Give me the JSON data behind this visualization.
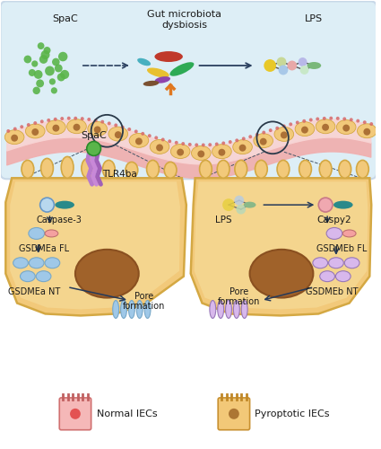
{
  "bg_color": "#ffffff",
  "top_panel_bg": "#ddeef6",
  "top_panel_border": "#c8d8e8",
  "cell_color": "#f2c97a",
  "cell_border": "#d4a843",
  "cell_inner": "#f7df9e",
  "nucleus_color": "#a0622a",
  "nucleus_border": "#8a5020",
  "intestine_pink": "#f2c4c4",
  "intestine_dark": "#e8a8a8",
  "microvillus_color": "#d87070",
  "green_dot": "#5ab54a",
  "dark_navy": "#2a3f5f",
  "light_blue": "#b0d4ee",
  "blue_shape": "#9fc8e8",
  "pink_shape": "#f4a0a0",
  "salmon_shape": "#f09898",
  "purple_shape": "#c8a0dc",
  "lavender_shape": "#d8b8ec",
  "teal_rod": "#2a8a8a",
  "teal_rod2": "#1e7a7a",
  "arrow_dark": "#253a5a",
  "zoom_circle_color": "#2a3a4a",
  "title_spac": "SpaC",
  "title_gut": "Gut microbiota\ndysbiosis",
  "title_lps": "LPS",
  "label_tlr4ba": "TLR4ba",
  "label_caspase3": "Caspase-3",
  "label_gsdmea_fl": "GSDMEa FL",
  "label_gsdmea_nt": "GSDMEa NT",
  "label_pore_left": "Pore\nformation",
  "label_pore_right": "Pore\nformation",
  "label_lps_cell": "LPS",
  "label_caspy2": "Caspy2",
  "label_gsdmeb_fl": "GSDMEb FL",
  "label_gsdmeb_nt": "GSDMEb NT",
  "label_normal": "Normal IECs",
  "label_pyroptotic": "Pyroptotic IECs",
  "spac_label_bottom": "SpaC"
}
